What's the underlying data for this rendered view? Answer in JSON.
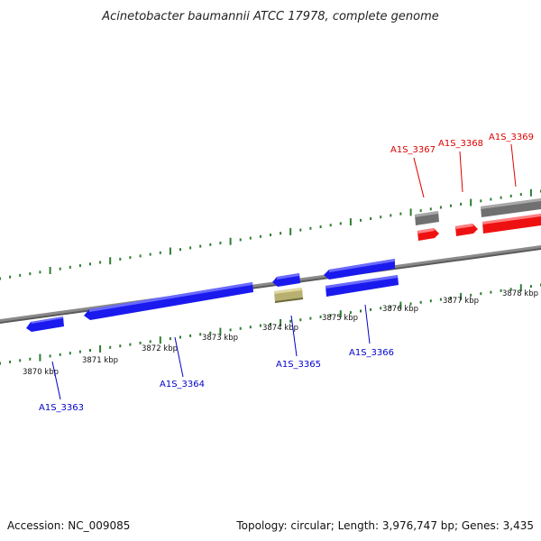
{
  "title": "Acinetobacter baumannii ATCC 17978, complete genome",
  "footer": {
    "accession": "Accession: NC_009085",
    "topology": "Topology: circular; Length: 3,976,747 bp; Genes: 3,435"
  },
  "colors": {
    "backbone": "#8a8a8a",
    "tick": "#2e7d32",
    "gene_blue": "#1a1aee",
    "gene_red": "#ee1111",
    "gene_grey": "#707070",
    "gene_khaki": "#b8b070",
    "label_blue": "#0000cc",
    "label_red": "#dd0000"
  },
  "ticks": [
    {
      "label": "3870 kbp"
    },
    {
      "label": "3871 kbp"
    },
    {
      "label": "3872 kbp"
    },
    {
      "label": "3873 kbp"
    },
    {
      "label": "3874 kbp"
    },
    {
      "label": "3875 kbp"
    },
    {
      "label": "3876 kbp"
    },
    {
      "label": "3877 kbp"
    },
    {
      "label": "3878 kbp"
    }
  ],
  "genes": [
    {
      "label": "A1S_3363",
      "strand": "reverse",
      "color": "blue"
    },
    {
      "label": "A1S_3364",
      "strand": "reverse",
      "color": "blue"
    },
    {
      "label": "A1S_3365",
      "strand": "reverse",
      "color": "blue"
    },
    {
      "label": "A1S_3366",
      "strand": "forward",
      "color": "blue"
    },
    {
      "label": "A1S_3367",
      "strand": "forward",
      "color": "red"
    },
    {
      "label": "A1S_3368",
      "strand": "forward",
      "color": "red"
    },
    {
      "label": "A1S_3369",
      "strand": "forward",
      "color": "red"
    }
  ]
}
